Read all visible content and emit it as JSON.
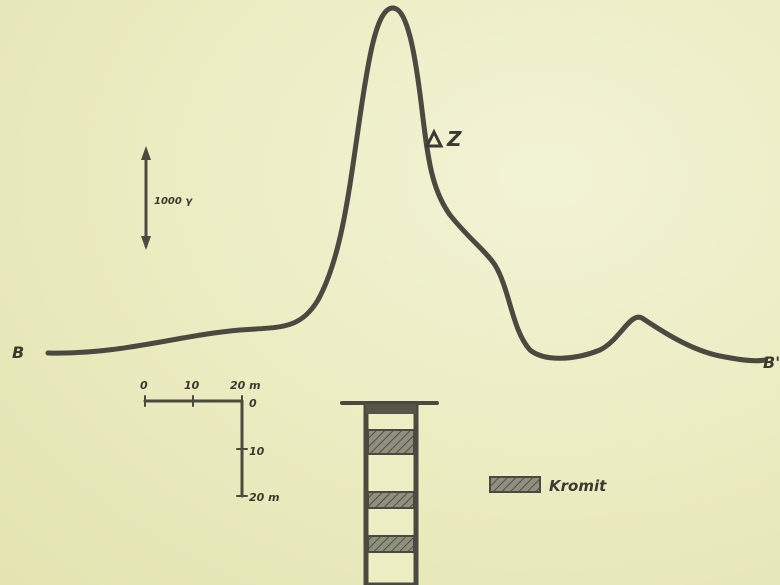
{
  "diagram": {
    "profile_start_label": "B",
    "profile_end_label": "B'",
    "anomaly_label": "Z",
    "vertical_scale_label": "1000 γ",
    "horizontal_scale": {
      "ticks": [
        "0",
        "10",
        "20 m"
      ]
    },
    "depth_scale": {
      "ticks": [
        "0",
        "10",
        "20 m"
      ]
    },
    "legend": {
      "label": "Kromit"
    },
    "colors": {
      "background": "#ecedbf",
      "ink": "#4a4a40",
      "hatch": "#6a6a5c"
    }
  }
}
